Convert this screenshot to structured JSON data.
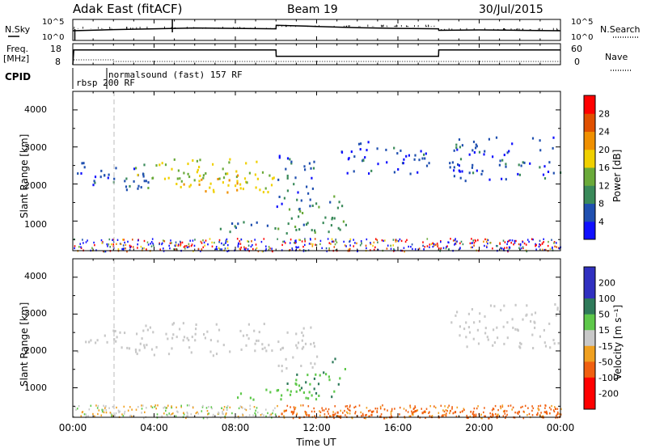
{
  "header": {
    "title": "Adak East (fitACF)",
    "beam": "Beam 19",
    "date": "30/Jul/2015"
  },
  "noise_panel": {
    "left_label": "N.Sky",
    "left_ticks": [
      "10^5",
      "10^0"
    ],
    "right_label": "N.Search",
    "right_ticks": [
      "10^5",
      "10^0"
    ]
  },
  "freq_panel": {
    "left_label": "Freq.",
    "left_unit": "[MHz]",
    "left_ticks": [
      "18",
      "8"
    ],
    "right_label": "Nave",
    "right_ticks": [
      "60",
      "0"
    ]
  },
  "cpid_panel": {
    "label": "CPID",
    "programs": [
      "rbsp 200 RF",
      "normalsound (fast) 157 RF"
    ]
  },
  "power_panel": {
    "ylabel": "Slant Range [km]",
    "yticks": [
      "1000",
      "2000",
      "3000",
      "4000"
    ],
    "colorbar_label": "Power [dB]",
    "colorbar_ticks": [
      "4",
      "8",
      "12",
      "16",
      "20",
      "24",
      "28"
    ]
  },
  "velocity_panel": {
    "ylabel": "Slant Range [km]",
    "yticks": [
      "1000",
      "2000",
      "3000",
      "4000"
    ],
    "colorbar_label": "Velocity [m s⁻¹]",
    "colorbar_ticks": [
      "200",
      "100",
      "50",
      "15",
      "-15",
      "-50",
      "-100",
      "-200"
    ]
  },
  "xaxis": {
    "ticks": [
      "00:00",
      "04:00",
      "08:00",
      "12:00",
      "16:00",
      "20:00",
      "00:00"
    ],
    "label": "Time UT"
  },
  "colors": {
    "power_scale": [
      "#1010ff",
      "#2050b0",
      "#3a8a5a",
      "#6aaa3a",
      "#f0d000",
      "#f09000",
      "#e05000",
      "#ff0000"
    ],
    "velocity_scale": [
      "#3030c0",
      "#2f7a5a",
      "#5ec84a",
      "#c8c8c8",
      "#f0a020",
      "#f06010",
      "#ff0000"
    ]
  },
  "chart_data": [
    {
      "type": "line",
      "name": "noise",
      "x_unit": "hours UT",
      "xlim": [
        0,
        24
      ],
      "series": [
        {
          "x": [
            0,
            2,
            4,
            6,
            8,
            10,
            10.01,
            12,
            14,
            16,
            18,
            18.01,
            20,
            22,
            24
          ],
          "values": [
            2.5,
            2.8,
            3.0,
            3.2,
            3.1,
            3.0,
            3.9,
            3.6,
            3.3,
            3.1,
            3.0,
            2.6,
            2.7,
            2.6,
            2.5
          ]
        }
      ]
    },
    {
      "type": "line",
      "name": "frequency",
      "x_unit": "hours UT",
      "ylim": [
        8,
        18
      ],
      "xlim": [
        0,
        24
      ],
      "series": [
        {
          "x": [
            0,
            0.05,
            10,
            10.01,
            18,
            18.01,
            24
          ],
          "values": [
            8,
            15,
            15,
            12,
            12,
            15,
            15
          ]
        }
      ]
    },
    {
      "type": "heatmap",
      "name": "power",
      "x_unit": "hours UT",
      "xlim": [
        0,
        24
      ],
      "ylim": [
        200,
        4500
      ],
      "clim": [
        0,
        30
      ],
      "regions": [
        {
          "t": [
            0.2,
            3.5
          ],
          "r": [
            2000,
            2600
          ],
          "v": 6
        },
        {
          "t": [
            3.0,
            9.9
          ],
          "r": [
            1900,
            2700
          ],
          "v": 16
        },
        {
          "t": [
            5.0,
            9.9
          ],
          "r": [
            1800,
            2300
          ],
          "v": 20
        },
        {
          "t": [
            1.5,
            4.0
          ],
          "r": [
            1800,
            2300
          ],
          "v": 7
        },
        {
          "t": [
            10.0,
            12.0
          ],
          "r": [
            1400,
            2800
          ],
          "v": 6
        },
        {
          "t": [
            6.8,
            12.0
          ],
          "r": [
            700,
            1000
          ],
          "v": 9
        },
        {
          "t": [
            10.5,
            13.5
          ],
          "r": [
            700,
            1700
          ],
          "v": 10
        },
        {
          "t": [
            13.0,
            17.5
          ],
          "r": [
            2300,
            3200
          ],
          "v": 5
        },
        {
          "t": [
            18.5,
            24.0
          ],
          "r": [
            2100,
            3300
          ],
          "v": 6
        }
      ]
    },
    {
      "type": "heatmap",
      "name": "velocity",
      "x_unit": "hours UT",
      "xlim": [
        0,
        24
      ],
      "ylim": [
        200,
        4500
      ],
      "clim": [
        -250,
        250
      ],
      "regions": [
        {
          "t": [
            0.2,
            3.5
          ],
          "r": [
            2000,
            2600
          ],
          "v": 0
        },
        {
          "t": [
            3.0,
            9.9
          ],
          "r": [
            1900,
            2800
          ],
          "v": 0
        },
        {
          "t": [
            10.0,
            12.0
          ],
          "r": [
            1400,
            2800
          ],
          "v": 0
        },
        {
          "t": [
            6.8,
            12.0
          ],
          "r": [
            700,
            1000
          ],
          "v": 30
        },
        {
          "t": [
            10.5,
            13.5
          ],
          "r": [
            700,
            1600
          ],
          "v": 40
        },
        {
          "t": [
            12.3,
            13.0
          ],
          "r": [
            1600,
            1900
          ],
          "v": 80
        },
        {
          "t": [
            18.5,
            24.0
          ],
          "r": [
            2100,
            3300
          ],
          "v": 0
        },
        {
          "t": [
            10.0,
            24.0
          ],
          "r": [
            200,
            400
          ],
          "v": -60
        }
      ]
    }
  ]
}
